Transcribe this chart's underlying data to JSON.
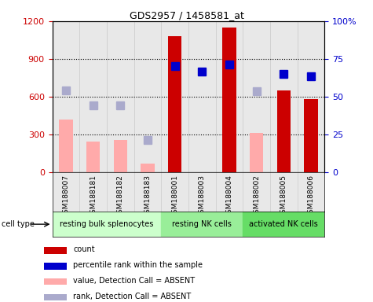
{
  "title": "GDS2957 / 1458581_at",
  "samples": [
    "GSM188007",
    "GSM188181",
    "GSM188182",
    "GSM188183",
    "GSM188001",
    "GSM188003",
    "GSM188004",
    "GSM188002",
    "GSM188005",
    "GSM188006"
  ],
  "cell_types": [
    {
      "label": "resting bulk splenocytes",
      "start": 0,
      "end": 4,
      "color": "#ccffcc"
    },
    {
      "label": "resting NK cells",
      "start": 4,
      "end": 7,
      "color": "#99ee99"
    },
    {
      "label": "activated NK cells",
      "start": 7,
      "end": 10,
      "color": "#66dd66"
    }
  ],
  "count_values": [
    null,
    null,
    null,
    null,
    1080,
    null,
    1150,
    null,
    650,
    580
  ],
  "count_absent": [
    420,
    240,
    255,
    70,
    null,
    null,
    null,
    310,
    null,
    null
  ],
  "percentile_values": [
    null,
    null,
    null,
    null,
    840,
    800,
    855,
    null,
    780,
    760
  ],
  "percentile_absent": [
    650,
    530,
    530,
    255,
    null,
    null,
    null,
    640,
    null,
    null
  ],
  "ylim_left": [
    0,
    1200
  ],
  "ylim_right": [
    0,
    100
  ],
  "yticks_left": [
    0,
    300,
    600,
    900,
    1200
  ],
  "yticks_right": [
    0,
    25,
    50,
    75,
    100
  ],
  "ytick_labels_right": [
    "0",
    "25",
    "50",
    "75",
    "100%"
  ],
  "colors": {
    "count": "#cc0000",
    "count_absent": "#ffaaaa",
    "percentile": "#0000cc",
    "percentile_absent": "#aaaacc",
    "bar_area": "#e8e8e8",
    "cell_type_0": "#ccffcc",
    "cell_type_1": "#99ee99",
    "cell_type_2": "#66dd66"
  },
  "bar_width": 0.5,
  "legend": [
    {
      "label": "count",
      "color": "#cc0000"
    },
    {
      "label": "percentile rank within the sample",
      "color": "#0000cc"
    },
    {
      "label": "value, Detection Call = ABSENT",
      "color": "#ffaaaa"
    },
    {
      "label": "rank, Detection Call = ABSENT",
      "color": "#aaaacc"
    }
  ]
}
